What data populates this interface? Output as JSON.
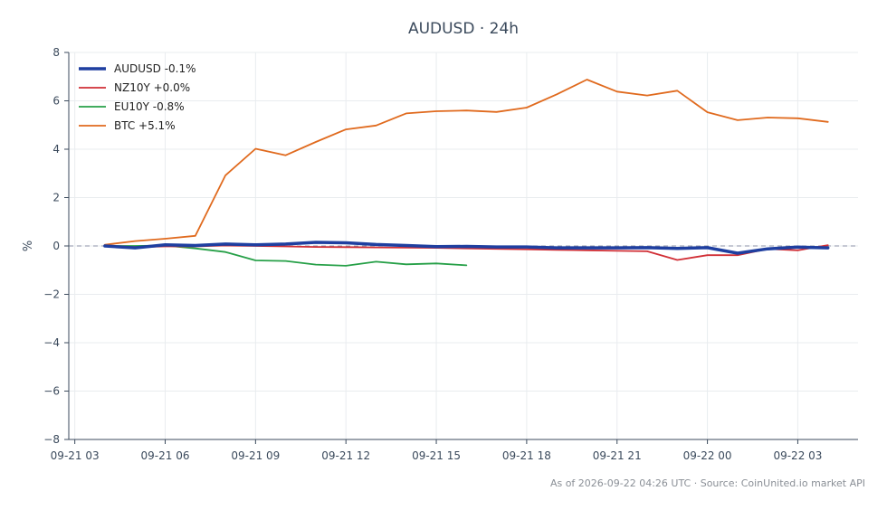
{
  "chart_data": {
    "type": "line",
    "title": "AUDUSD · 24h",
    "xlabel": "",
    "ylabel": "%",
    "ylim": [
      -8,
      8
    ],
    "yticks": [
      -8,
      -6,
      -4,
      -2,
      0,
      2,
      4,
      6,
      8
    ],
    "ytick_labels": [
      "−8",
      "−6",
      "−4",
      "−2",
      "0",
      "2",
      "4",
      "6",
      "8"
    ],
    "xlim_hours": [
      2.8,
      29.0
    ],
    "xticks_hours": [
      3,
      6,
      9,
      12,
      15,
      18,
      21,
      24,
      27
    ],
    "xtick_labels": [
      "09-21 03",
      "09-21 06",
      "09-21 09",
      "09-21 12",
      "09-21 15",
      "09-21 18",
      "09-21 21",
      "09-22 00",
      "09-22 03"
    ],
    "x_hours_note_start": "2026-09-21 00:00",
    "grid": true,
    "zero_line": true,
    "legend_position": "top-left",
    "series": [
      {
        "name": "AUDUSD -0.1%",
        "color": "#1f3fa0",
        "width": 3.5,
        "x": [
          4,
          5,
          6,
          7,
          8,
          9,
          10,
          11,
          12,
          13,
          14,
          15,
          16,
          17,
          18,
          19,
          20,
          21,
          22,
          23,
          24,
          25,
          26,
          27,
          28
        ],
        "y": [
          0.0,
          -0.08,
          0.05,
          0.02,
          0.08,
          0.05,
          0.08,
          0.15,
          0.13,
          0.06,
          0.02,
          -0.03,
          -0.02,
          -0.04,
          -0.04,
          -0.08,
          -0.08,
          -0.08,
          -0.07,
          -0.1,
          -0.07,
          -0.3,
          -0.12,
          -0.05,
          -0.08
        ]
      },
      {
        "name": "NZ10Y +0.0%",
        "color": "#d12f36",
        "width": 1.8,
        "x": [
          4,
          5,
          6,
          7,
          8,
          9,
          10,
          11,
          12,
          13,
          14,
          15,
          16,
          17,
          18,
          19,
          20,
          21,
          22,
          23,
          24,
          25,
          26,
          27,
          28
        ],
        "y": [
          0.0,
          -0.05,
          -0.02,
          -0.02,
          0.02,
          0.0,
          -0.02,
          -0.04,
          -0.05,
          -0.06,
          -0.07,
          -0.08,
          -0.1,
          -0.12,
          -0.14,
          -0.16,
          -0.18,
          -0.2,
          -0.22,
          -0.58,
          -0.38,
          -0.38,
          -0.12,
          -0.18,
          0.03
        ]
      },
      {
        "name": "EU10Y -0.8%",
        "color": "#27a048",
        "width": 1.8,
        "x": [
          4,
          5,
          6,
          7,
          8,
          9,
          10,
          11,
          12,
          13,
          14,
          15,
          16
        ],
        "y": [
          0.0,
          0.0,
          0.02,
          -0.1,
          -0.25,
          -0.6,
          -0.62,
          -0.77,
          -0.82,
          -0.65,
          -0.76,
          -0.72,
          -0.8
        ]
      },
      {
        "name": "BTC +5.1%",
        "color": "#e06a1e",
        "width": 1.8,
        "x": [
          4,
          5,
          6,
          7,
          8,
          9,
          10,
          11,
          12,
          13,
          14,
          15,
          16,
          17,
          18,
          19,
          20,
          21,
          22,
          23,
          24,
          25,
          26,
          27,
          28
        ],
        "y": [
          0.05,
          0.2,
          0.3,
          0.42,
          2.92,
          4.02,
          3.75,
          4.3,
          4.82,
          4.98,
          5.48,
          5.57,
          5.6,
          5.54,
          5.72,
          6.27,
          6.88,
          6.38,
          6.22,
          6.42,
          5.53,
          5.2,
          5.31,
          5.28,
          5.13
        ]
      }
    ]
  },
  "footer": "As of 2026-09-22 04:26 UTC · Source: CoinUnited.io market API"
}
